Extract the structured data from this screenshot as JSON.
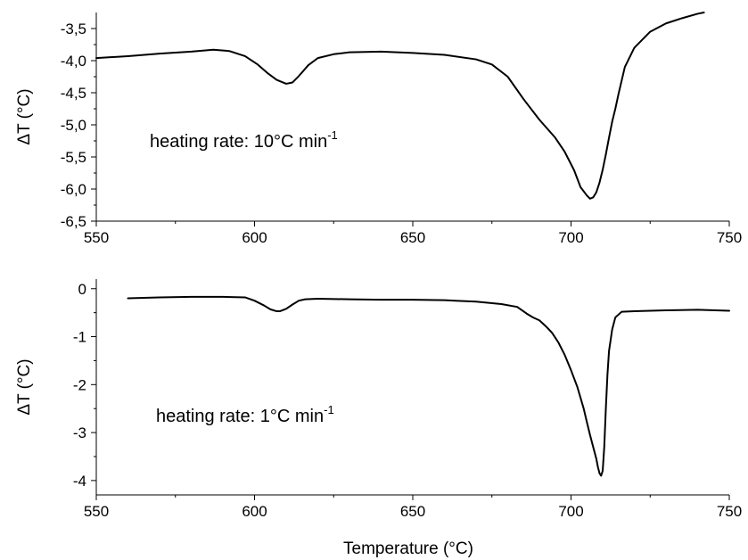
{
  "chart_data": [
    {
      "type": "line",
      "title": "",
      "xlabel": "",
      "ylabel": "ΔT (°C)",
      "xlim": [
        550,
        750
      ],
      "ylim": [
        -6.5,
        -3.25
      ],
      "grid": false,
      "legend": "none",
      "xticks": [
        550,
        600,
        650,
        700,
        750
      ],
      "xtick_labels": [
        "550",
        "600",
        "650",
        "700",
        "750"
      ],
      "yticks": [
        -6.5,
        -6.0,
        -5.5,
        -5.0,
        -4.5,
        -4.0,
        -3.5
      ],
      "ytick_labels": [
        "-6,5",
        "-6,0",
        "-5,5",
        "-5,0",
        "-4,5",
        "-4,0",
        "-3,5"
      ],
      "annotation": {
        "text": "heating rate: 10°C min",
        "superscript": "-1"
      },
      "series": [
        {
          "color": "#000000",
          "x": [
            550,
            560,
            570,
            580,
            587,
            592,
            597,
            601,
            604,
            607,
            610,
            612,
            614,
            617,
            620,
            625,
            630,
            640,
            650,
            660,
            670,
            675,
            680,
            685,
            690,
            695,
            698,
            701,
            703,
            705,
            706,
            707,
            708,
            709,
            710,
            711,
            712,
            713,
            714,
            715,
            717,
            720,
            725,
            730,
            735,
            740,
            742
          ],
          "y": [
            -3.96,
            -3.93,
            -3.89,
            -3.86,
            -3.83,
            -3.85,
            -3.93,
            -4.06,
            -4.19,
            -4.3,
            -4.36,
            -4.34,
            -4.24,
            -4.07,
            -3.96,
            -3.9,
            -3.87,
            -3.86,
            -3.88,
            -3.91,
            -3.98,
            -4.06,
            -4.25,
            -4.6,
            -4.92,
            -5.2,
            -5.42,
            -5.71,
            -5.97,
            -6.1,
            -6.15,
            -6.13,
            -6.05,
            -5.9,
            -5.7,
            -5.46,
            -5.2,
            -4.95,
            -4.75,
            -4.52,
            -4.1,
            -3.8,
            -3.55,
            -3.42,
            -3.34,
            -3.27,
            -3.25
          ]
        }
      ]
    },
    {
      "type": "line",
      "title": "",
      "xlabel": "Temperature (°C)",
      "ylabel": "ΔT (°C)",
      "xlim": [
        550,
        750
      ],
      "ylim": [
        -4.3,
        0.2
      ],
      "grid": false,
      "legend": "none",
      "xticks": [
        550,
        600,
        650,
        700,
        750
      ],
      "xtick_labels": [
        "550",
        "600",
        "650",
        "700",
        "750"
      ],
      "yticks": [
        -4,
        -3,
        -2,
        -1,
        0
      ],
      "ytick_labels": [
        "-4",
        "-3",
        "-2",
        "-1",
        "0"
      ],
      "annotation": {
        "text": "heating rate: 1°C min",
        "superscript": "-1"
      },
      "series": [
        {
          "color": "#000000",
          "x": [
            560,
            570,
            580,
            590,
            597,
            600,
            603,
            605,
            607,
            608,
            610,
            612,
            614,
            616,
            620,
            630,
            640,
            650,
            660,
            670,
            678,
            683,
            686,
            688,
            690,
            692,
            694,
            696,
            698,
            700,
            702,
            704,
            705,
            706,
            707,
            708,
            708.5,
            709,
            709.5,
            710,
            710.5,
            711,
            711.5,
            712,
            713,
            714,
            716,
            720,
            730,
            740,
            750
          ],
          "y": [
            -0.2,
            -0.18,
            -0.17,
            -0.17,
            -0.18,
            -0.25,
            -0.35,
            -0.43,
            -0.47,
            -0.47,
            -0.42,
            -0.33,
            -0.25,
            -0.22,
            -0.21,
            -0.22,
            -0.23,
            -0.23,
            -0.24,
            -0.27,
            -0.32,
            -0.38,
            -0.52,
            -0.6,
            -0.66,
            -0.78,
            -0.92,
            -1.12,
            -1.38,
            -1.7,
            -2.05,
            -2.5,
            -2.78,
            -3.05,
            -3.3,
            -3.55,
            -3.72,
            -3.85,
            -3.9,
            -3.8,
            -3.3,
            -2.5,
            -1.8,
            -1.3,
            -0.85,
            -0.6,
            -0.48,
            -0.47,
            -0.45,
            -0.44,
            -0.46
          ]
        }
      ]
    }
  ]
}
